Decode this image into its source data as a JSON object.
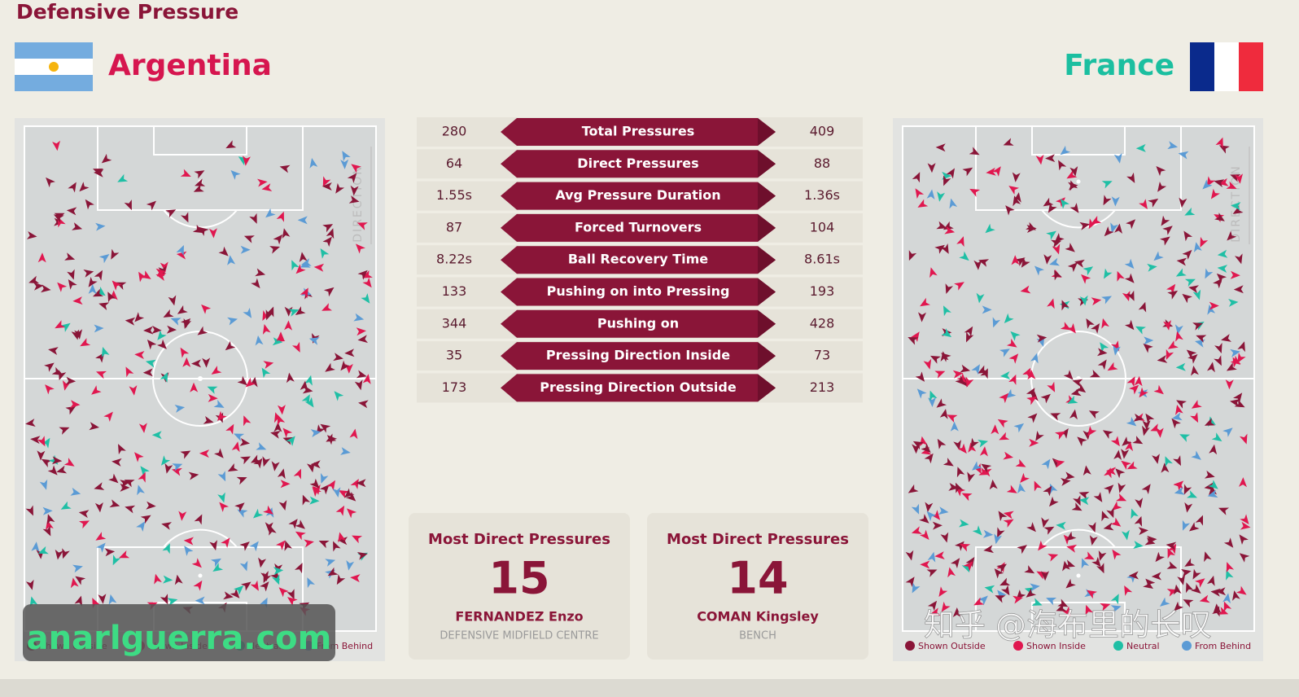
{
  "header": {
    "title": "Defensive Pressure"
  },
  "teams": [
    {
      "name": "Argentina"
    },
    {
      "name": "France"
    }
  ],
  "stats": {
    "rows": [
      {
        "label": "Total Pressures",
        "left": "280",
        "right": "409"
      },
      {
        "label": "Direct Pressures",
        "left": "64",
        "right": "88"
      },
      {
        "label": "Avg Pressure Duration",
        "left": "1.55s",
        "right": "1.36s"
      },
      {
        "label": "Forced Turnovers",
        "left": "87",
        "right": "104"
      },
      {
        "label": "Ball Recovery Time",
        "left": "8.22s",
        "right": "8.61s"
      },
      {
        "label": "Pushing on into Pressing",
        "left": "133",
        "right": "193"
      },
      {
        "label": "Pushing on",
        "left": "344",
        "right": "428"
      },
      {
        "label": "Pressing Direction Inside",
        "left": "35",
        "right": "73"
      },
      {
        "label": "Pressing Direction Outside",
        "left": "173",
        "right": "213"
      }
    ]
  },
  "cards": [
    {
      "title": "Most Direct Pressures",
      "value": "15",
      "name": "FERNANDEZ Enzo",
      "position": "DEFENSIVE MIDFIELD CENTRE"
    },
    {
      "title": "Most Direct Pressures",
      "value": "14",
      "name": "COMAN Kingsley",
      "position": "BENCH"
    }
  ],
  "pitch": {
    "direction_label": "DIRECTION",
    "legend": [
      {
        "label": "Shown Outside",
        "color": "#8a1538"
      },
      {
        "label": "Shown Inside",
        "color": "#e0174f"
      },
      {
        "label": "Neutral",
        "color": "#1fbfa5"
      },
      {
        "label": "From Behind",
        "color": "#5b9bd5"
      }
    ]
  },
  "watermarks": [
    "anarlguerra.com",
    "知乎 @海布里的长叹"
  ]
}
